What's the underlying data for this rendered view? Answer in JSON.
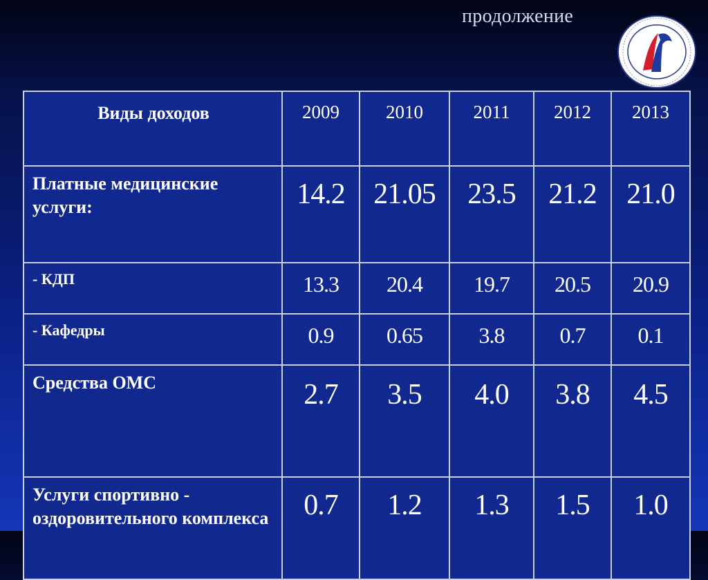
{
  "header": {
    "subtitle": "продолжение"
  },
  "logo": {
    "icon": "university-seal-icon",
    "colors": [
      "#ffffff",
      "#d21f2a",
      "#1e3a9e"
    ]
  },
  "table": {
    "header": {
      "label": "Виды доходов",
      "years": [
        "2009",
        "2010",
        "2011",
        "2012",
        "2013"
      ]
    },
    "rows": [
      {
        "label": "Платные медицинские услуги:",
        "values": [
          "14.2",
          "21.05",
          "23.5",
          "21.2",
          "21.0"
        ]
      },
      {
        "label": "- КДП",
        "values": [
          "13.3",
          "20.4",
          "19.7",
          "20.5",
          "20.9"
        ]
      },
      {
        "label": "- Кафедры",
        "values": [
          "0.9",
          "0.65",
          "3.8",
          "0.7",
          "0.1"
        ]
      },
      {
        "label": "Средства ОМС",
        "values": [
          "2.7",
          "3.5",
          "4.0",
          "3.8",
          "4.5"
        ]
      },
      {
        "label": "Услуги спортивно - оздоровительного комплекса",
        "values": [
          "0.7",
          "1.2",
          "1.3",
          "1.5",
          "1.0"
        ]
      }
    ]
  }
}
